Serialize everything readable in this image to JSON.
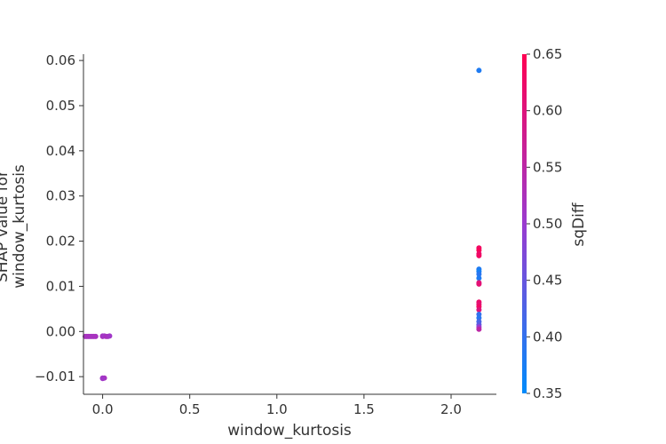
{
  "chart_data": {
    "type": "scatter",
    "title": "",
    "xlabel": "window_kurtosis",
    "ylabel_lines": [
      "SHAP value for",
      "window_kurtosis"
    ],
    "xlim": [
      -0.11,
      2.26
    ],
    "ylim": [
      -0.0139,
      0.0614
    ],
    "x_ticks": [
      0.0,
      0.5,
      1.0,
      1.5,
      2.0
    ],
    "x_tick_labels": [
      "0.0",
      "0.5",
      "1.0",
      "1.5",
      "2.0"
    ],
    "y_ticks": [
      -0.01,
      0.0,
      0.01,
      0.02,
      0.03,
      0.04,
      0.05,
      0.06
    ],
    "y_tick_labels": [
      "−0.01",
      "0.00",
      "0.01",
      "0.02",
      "0.03",
      "0.04",
      "0.05",
      "0.06"
    ],
    "color_feature": "sqDiff",
    "colorbar": {
      "label": "sqDiff",
      "range": [
        0.35,
        0.65
      ],
      "ticks": [
        0.35,
        0.4,
        0.45,
        0.5,
        0.55,
        0.6,
        0.65
      ],
      "tick_labels": [
        "0.35",
        "0.40",
        "0.45",
        "0.50",
        "0.55",
        "0.60",
        "0.65"
      ],
      "colors": [
        "#008bfb",
        "#ff0052"
      ]
    },
    "points": [
      {
        "x": -0.1,
        "y": -0.0011,
        "c": 0.52
      },
      {
        "x": -0.09,
        "y": -0.0011,
        "c": 0.52
      },
      {
        "x": -0.08,
        "y": -0.0011,
        "c": 0.52
      },
      {
        "x": -0.07,
        "y": -0.0011,
        "c": 0.52
      },
      {
        "x": -0.06,
        "y": -0.0011,
        "c": 0.52
      },
      {
        "x": -0.05,
        "y": -0.0011,
        "c": 0.52
      },
      {
        "x": -0.04,
        "y": -0.0011,
        "c": 0.52
      },
      {
        "x": 0.0,
        "y": -0.001,
        "c": 0.51
      },
      {
        "x": 0.0,
        "y": -0.0011,
        "c": 0.52
      },
      {
        "x": 0.01,
        "y": -0.001,
        "c": 0.51
      },
      {
        "x": 0.02,
        "y": -0.0011,
        "c": 0.52
      },
      {
        "x": 0.03,
        "y": -0.0011,
        "c": 0.52
      },
      {
        "x": 0.04,
        "y": -0.001,
        "c": 0.51
      },
      {
        "x": 0.0,
        "y": -0.0103,
        "c": 0.52
      },
      {
        "x": 0.01,
        "y": -0.0103,
        "c": 0.52
      },
      {
        "x": 0.0,
        "y": -0.0104,
        "c": 0.51
      },
      {
        "x": 2.16,
        "y": 0.0578,
        "c": 0.38
      },
      {
        "x": 2.16,
        "y": 0.0185,
        "c": 0.63
      },
      {
        "x": 2.16,
        "y": 0.018,
        "c": 0.64
      },
      {
        "x": 2.16,
        "y": 0.0172,
        "c": 0.62
      },
      {
        "x": 2.16,
        "y": 0.0168,
        "c": 0.63
      },
      {
        "x": 2.16,
        "y": 0.0138,
        "c": 0.38
      },
      {
        "x": 2.16,
        "y": 0.0133,
        "c": 0.37
      },
      {
        "x": 2.16,
        "y": 0.0127,
        "c": 0.39
      },
      {
        "x": 2.16,
        "y": 0.0118,
        "c": 0.38
      },
      {
        "x": 2.16,
        "y": 0.0108,
        "c": 0.6
      },
      {
        "x": 2.16,
        "y": 0.0105,
        "c": 0.61
      },
      {
        "x": 2.16,
        "y": 0.0065,
        "c": 0.62
      },
      {
        "x": 2.16,
        "y": 0.006,
        "c": 0.61
      },
      {
        "x": 2.16,
        "y": 0.0055,
        "c": 0.63
      },
      {
        "x": 2.16,
        "y": 0.0048,
        "c": 0.6
      },
      {
        "x": 2.16,
        "y": 0.0038,
        "c": 0.4
      },
      {
        "x": 2.16,
        "y": 0.003,
        "c": 0.39
      },
      {
        "x": 2.16,
        "y": 0.0022,
        "c": 0.42
      },
      {
        "x": 2.16,
        "y": 0.0015,
        "c": 0.44
      },
      {
        "x": 2.16,
        "y": 0.001,
        "c": 0.5
      },
      {
        "x": 2.16,
        "y": 0.0005,
        "c": 0.55
      }
    ]
  }
}
